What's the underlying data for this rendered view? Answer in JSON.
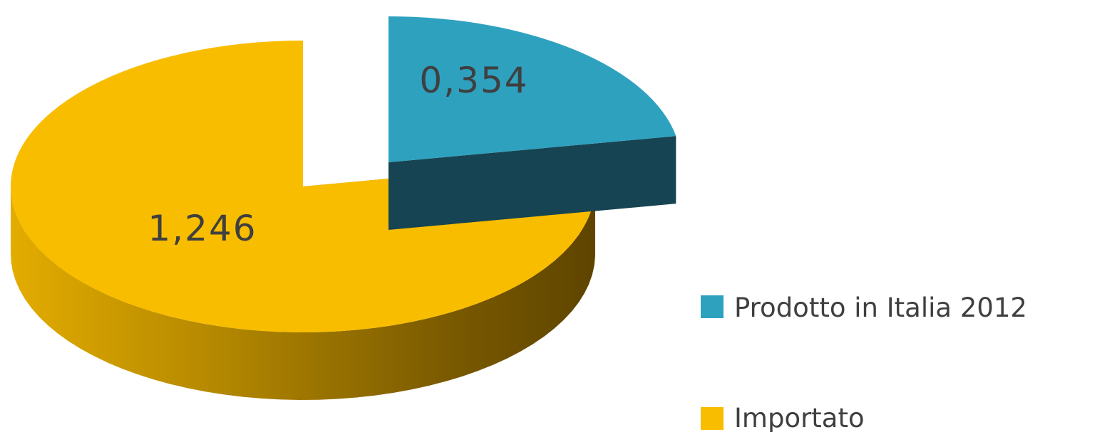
{
  "chart_data": {
    "type": "pie",
    "style": "3d-exploded",
    "title": "",
    "slices": [
      {
        "name": "Prodotto in Italia 2012",
        "value": 0.354,
        "label": "0,354",
        "color": "#2ea1bf",
        "side_color": "#164452"
      },
      {
        "name": "Importato",
        "value": 1.246,
        "label": "1,246",
        "color": "#f9bd00",
        "side_color": "#8d6c00"
      }
    ],
    "legend": {
      "position": "right",
      "items": [
        {
          "label": "Prodotto in Italia 2012",
          "color": "#2ea1bf"
        },
        {
          "label": "Importato",
          "color": "#f9bd00"
        }
      ]
    }
  }
}
